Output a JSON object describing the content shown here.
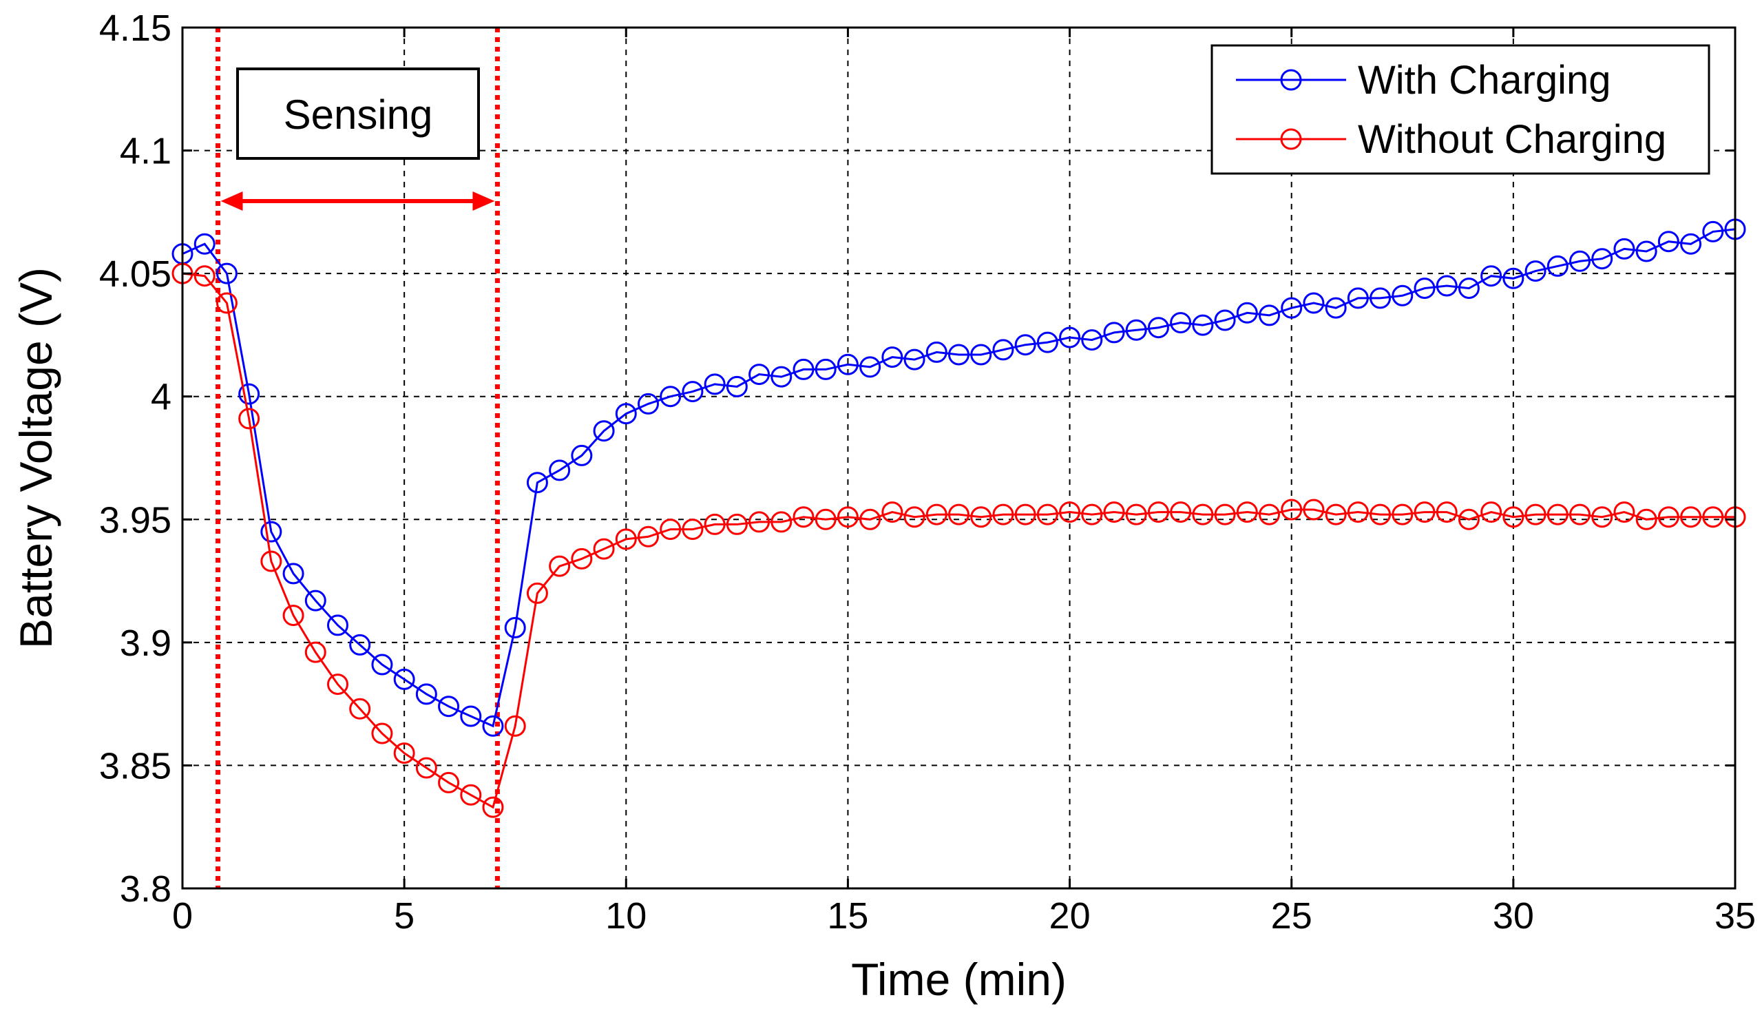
{
  "chart_data": {
    "type": "line",
    "title": "",
    "xlabel": "Time (min)",
    "ylabel": "Battery Voltage (V)",
    "xlim": [
      0,
      35
    ],
    "ylim": [
      3.8,
      4.15
    ],
    "xticks": [
      0,
      5,
      10,
      15,
      20,
      25,
      30,
      35
    ],
    "xtick_labels": [
      "0",
      "5",
      "10",
      "15",
      "20",
      "25",
      "30",
      "35"
    ],
    "yticks": [
      3.8,
      3.85,
      3.9,
      3.95,
      4.0,
      4.05,
      4.1,
      4.15
    ],
    "ytick_labels": [
      "3.8",
      "3.85",
      "3.9",
      "3.95",
      "4",
      "4.05",
      "4.1",
      "4.15"
    ],
    "grid": true,
    "legend_position": "top-right",
    "series": [
      {
        "name": "With Charging",
        "color": "#0000ff",
        "marker": "circle",
        "x": [
          0,
          0.5,
          1,
          1.5,
          2,
          2.5,
          3,
          3.5,
          4,
          4.5,
          5,
          5.5,
          6,
          6.5,
          7,
          7.5,
          8,
          8.5,
          9,
          9.5,
          10,
          10.5,
          11,
          11.5,
          12,
          12.5,
          13,
          13.5,
          14,
          14.5,
          15,
          15.5,
          16,
          16.5,
          17,
          17.5,
          18,
          18.5,
          19,
          19.5,
          20,
          20.5,
          21,
          21.5,
          22,
          22.5,
          23,
          23.5,
          24,
          24.5,
          25,
          25.5,
          26,
          26.5,
          27,
          27.5,
          28,
          28.5,
          29,
          29.5,
          30,
          30.5,
          31,
          31.5,
          32,
          32.5,
          33,
          33.5,
          34,
          34.5,
          35
        ],
        "y": [
          4.058,
          4.062,
          4.05,
          4.001,
          3.945,
          3.928,
          3.917,
          3.907,
          3.899,
          3.891,
          3.885,
          3.879,
          3.874,
          3.87,
          3.866,
          3.906,
          3.965,
          3.97,
          3.976,
          3.986,
          3.993,
          3.997,
          4.0,
          4.002,
          4.005,
          4.004,
          4.009,
          4.008,
          4.011,
          4.011,
          4.013,
          4.012,
          4.016,
          4.015,
          4.018,
          4.017,
          4.017,
          4.019,
          4.021,
          4.022,
          4.024,
          4.023,
          4.026,
          4.027,
          4.028,
          4.03,
          4.029,
          4.031,
          4.034,
          4.033,
          4.036,
          4.038,
          4.036,
          4.04,
          4.04,
          4.041,
          4.044,
          4.045,
          4.044,
          4.049,
          4.048,
          4.051,
          4.053,
          4.055,
          4.056,
          4.06,
          4.059,
          4.063,
          4.062,
          4.067,
          4.068
        ]
      },
      {
        "name": "Without Charging",
        "color": "#ff0000",
        "marker": "circle",
        "x": [
          0,
          0.5,
          1,
          1.5,
          2,
          2.5,
          3,
          3.5,
          4,
          4.5,
          5,
          5.5,
          6,
          6.5,
          7,
          7.5,
          8,
          8.5,
          9,
          9.5,
          10,
          10.5,
          11,
          11.5,
          12,
          12.5,
          13,
          13.5,
          14,
          14.5,
          15,
          15.5,
          16,
          16.5,
          17,
          17.5,
          18,
          18.5,
          19,
          19.5,
          20,
          20.5,
          21,
          21.5,
          22,
          22.5,
          23,
          23.5,
          24,
          24.5,
          25,
          25.5,
          26,
          26.5,
          27,
          27.5,
          28,
          28.5,
          29,
          29.5,
          30,
          30.5,
          31,
          31.5,
          32,
          32.5,
          33,
          33.5,
          34,
          34.5,
          35
        ],
        "y": [
          4.05,
          4.049,
          4.038,
          3.991,
          3.933,
          3.911,
          3.896,
          3.883,
          3.873,
          3.863,
          3.855,
          3.849,
          3.843,
          3.838,
          3.833,
          3.866,
          3.92,
          3.931,
          3.934,
          3.938,
          3.942,
          3.943,
          3.946,
          3.946,
          3.948,
          3.948,
          3.949,
          3.949,
          3.951,
          3.95,
          3.951,
          3.95,
          3.953,
          3.951,
          3.952,
          3.952,
          3.951,
          3.952,
          3.952,
          3.952,
          3.953,
          3.952,
          3.953,
          3.952,
          3.953,
          3.953,
          3.952,
          3.952,
          3.953,
          3.952,
          3.954,
          3.954,
          3.952,
          3.953,
          3.952,
          3.952,
          3.953,
          3.953,
          3.95,
          3.953,
          3.951,
          3.952,
          3.952,
          3.952,
          3.951,
          3.953,
          3.95,
          3.951,
          3.951,
          3.951,
          3.951
        ]
      }
    ],
    "annotations": {
      "sensing_label": "Sensing",
      "sensing_start_min": 0.8,
      "sensing_end_min": 7.1,
      "sensing_color": "#ff0000"
    }
  }
}
